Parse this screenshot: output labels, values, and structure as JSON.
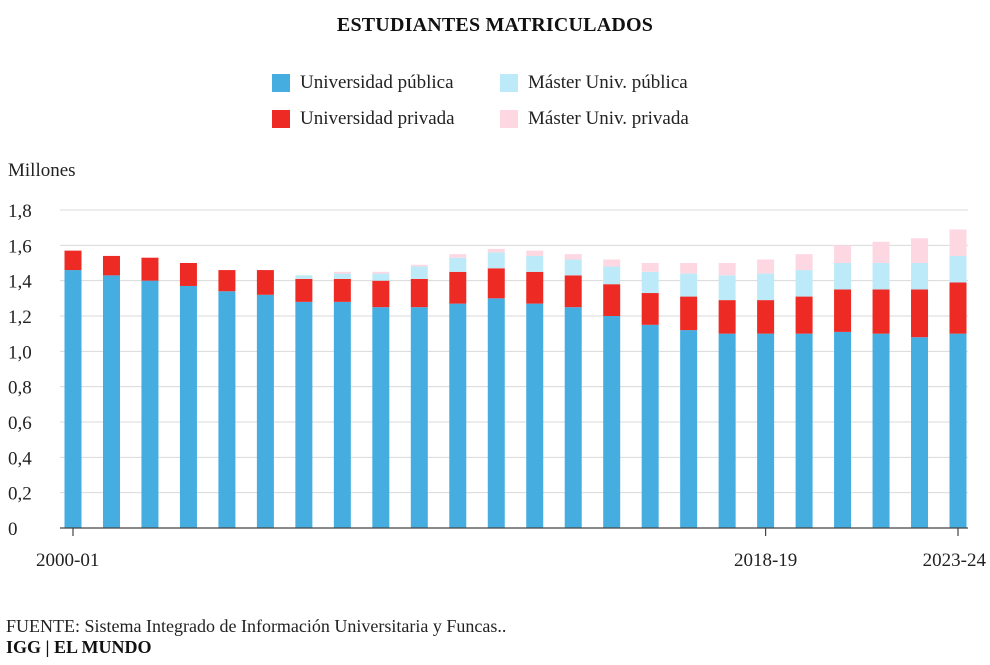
{
  "title": "ESTUDIANTES MATRICULADOS",
  "legend": [
    {
      "label": "Universidad pública",
      "color": "#45ade0"
    },
    {
      "label": "Máster Univ. pública",
      "color": "#bdeaf8"
    },
    {
      "label": "Universidad privada",
      "color": "#ee2a24"
    },
    {
      "label": "Máster Univ. privada",
      "color": "#fdd8e3"
    }
  ],
  "ylabel": "Millones",
  "footer": {
    "source": "FUENTE: Sistema Integrado de Información Universitaria y Funcas..",
    "brand": "IGG | EL MUNDO"
  },
  "chart_data": {
    "type": "bar",
    "stacked": true,
    "ylim": [
      0,
      1.8
    ],
    "yticks": [
      0,
      0.2,
      0.4,
      0.6,
      0.8,
      1.0,
      1.2,
      1.4,
      1.6,
      1.8
    ],
    "ytick_labels": [
      "0",
      "0,2",
      "0,4",
      "0,6",
      "0,8",
      "1,0",
      "1,2",
      "1,4",
      "1,6",
      "1,8"
    ],
    "ylabel": "Millones",
    "grid": true,
    "legend_position": "top",
    "categories": [
      "2000-01",
      "2001-02",
      "2002-03",
      "2003-04",
      "2004-05",
      "2005-06",
      "2006-07",
      "2007-08",
      "2008-09",
      "2009-10",
      "2010-11",
      "2011-12",
      "2012-13",
      "2013-14",
      "2014-15",
      "2015-16",
      "2016-17",
      "2017-18",
      "2018-19",
      "2019-20",
      "2020-21",
      "2021-22",
      "2022-23",
      "2023-24"
    ],
    "xtick_labels": {
      "0": "2000-01",
      "18": "2018-19",
      "23": "2023-24"
    },
    "series": [
      {
        "name": "Universidad pública",
        "color": "#45ade0",
        "values": [
          1.46,
          1.43,
          1.4,
          1.37,
          1.34,
          1.32,
          1.28,
          1.28,
          1.25,
          1.25,
          1.27,
          1.3,
          1.27,
          1.25,
          1.2,
          1.15,
          1.12,
          1.1,
          1.1,
          1.1,
          1.11,
          1.1,
          1.08,
          1.1
        ]
      },
      {
        "name": "Universidad privada",
        "color": "#ee2a24",
        "values": [
          0.11,
          0.11,
          0.13,
          0.13,
          0.12,
          0.14,
          0.13,
          0.13,
          0.15,
          0.16,
          0.18,
          0.17,
          0.18,
          0.18,
          0.18,
          0.18,
          0.19,
          0.19,
          0.19,
          0.21,
          0.24,
          0.25,
          0.27,
          0.29
        ]
      },
      {
        "name": "Máster Univ. pública",
        "color": "#bdeaf8",
        "values": [
          0,
          0,
          0,
          0,
          0,
          0,
          0.02,
          0.03,
          0.04,
          0.07,
          0.08,
          0.09,
          0.09,
          0.09,
          0.1,
          0.12,
          0.13,
          0.14,
          0.15,
          0.15,
          0.15,
          0.15,
          0.15,
          0.15
        ]
      },
      {
        "name": "Máster Univ. privada",
        "color": "#fdd8e3",
        "values": [
          0,
          0,
          0,
          0,
          0,
          0,
          0,
          0.01,
          0.01,
          0.01,
          0.02,
          0.02,
          0.03,
          0.03,
          0.04,
          0.05,
          0.06,
          0.07,
          0.08,
          0.09,
          0.1,
          0.12,
          0.14,
          0.15
        ]
      }
    ]
  }
}
